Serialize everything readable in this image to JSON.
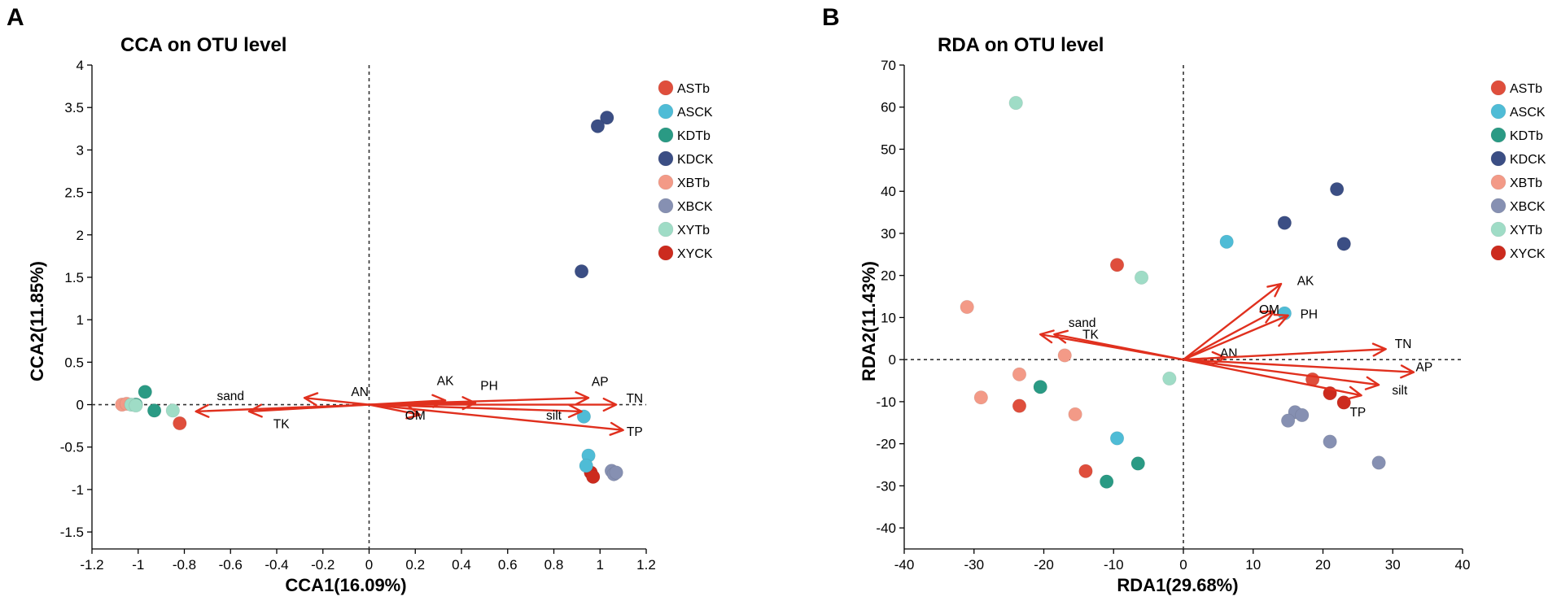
{
  "groups": [
    {
      "name": "ASTb",
      "color": "#df4e3c"
    },
    {
      "name": "ASCK",
      "color": "#4fbcd6"
    },
    {
      "name": "KDTb",
      "color": "#2a9a84"
    },
    {
      "name": "KDCK",
      "color": "#3b4e84"
    },
    {
      "name": "XBTb",
      "color": "#f39a87"
    },
    {
      "name": "XBCK",
      "color": "#8690b2"
    },
    {
      "name": "XYTb",
      "color": "#9fdcc6"
    },
    {
      "name": "XYCK",
      "color": "#cc2b1e"
    }
  ],
  "arrow_color": "#e0301e",
  "chart_data": [
    {
      "type": "scatter",
      "panel_letter": "A",
      "title": "CCA on OTU level",
      "xlabel": "CCA1(16.09%)",
      "ylabel": "CCA2(11.85%)",
      "xlim": [
        -1.2,
        1.2
      ],
      "ylim": [
        -1.7,
        4
      ],
      "xticks": [
        -1.2,
        -1,
        -0.8,
        -0.6,
        -0.4,
        -0.2,
        0,
        0.2,
        0.4,
        0.6,
        0.8,
        1,
        1.2
      ],
      "yticks": [
        -1.5,
        -1,
        -0.5,
        0,
        0.5,
        1,
        1.5,
        2,
        2.5,
        3,
        3.5,
        4
      ],
      "xtick_labels": [
        "-1.2",
        "-1",
        "-0.8",
        "-0.6",
        "-0.4",
        "-0.2",
        "0",
        "0.2",
        "0.4",
        "0.6",
        "0.8",
        "1",
        "1.2"
      ],
      "ytick_labels": [
        "-1.5",
        "-1",
        "-0.5",
        "0",
        "0.5",
        "1",
        "1.5",
        "2",
        "2.5",
        "3",
        "3.5",
        "4"
      ],
      "arrows": [
        {
          "label": "sand",
          "x": -0.75,
          "y": -0.08,
          "lx": -0.6,
          "ly": 0.1
        },
        {
          "label": "TK",
          "x": -0.52,
          "y": -0.08,
          "lx": -0.38,
          "ly": -0.23
        },
        {
          "label": "AN",
          "x": -0.28,
          "y": 0.08,
          "lx": -0.04,
          "ly": 0.15
        },
        {
          "label": "OM",
          "x": 0.22,
          "y": -0.12,
          "lx": 0.2,
          "ly": -0.13
        },
        {
          "label": "AK",
          "x": 0.33,
          "y": 0.05,
          "lx": 0.33,
          "ly": 0.28
        },
        {
          "label": "PH",
          "x": 0.46,
          "y": 0.02,
          "lx": 0.52,
          "ly": 0.22
        },
        {
          "label": "AP",
          "x": 0.95,
          "y": 0.08,
          "lx": 1.0,
          "ly": 0.27
        },
        {
          "label": "TN",
          "x": 1.07,
          "y": 0.0,
          "lx": 1.15,
          "ly": 0.07
        },
        {
          "label": "silt",
          "x": 0.92,
          "y": -0.08,
          "lx": 0.8,
          "ly": -0.13
        },
        {
          "label": "TP",
          "x": 1.1,
          "y": -0.3,
          "lx": 1.15,
          "ly": -0.32
        }
      ],
      "points": [
        {
          "group": "ASTb",
          "x": -0.82,
          "y": -0.22
        },
        {
          "group": "XYCK",
          "x": 0.96,
          "y": -0.8
        },
        {
          "group": "XYCK",
          "x": 0.97,
          "y": -0.85
        },
        {
          "group": "ASCK",
          "x": 0.93,
          "y": -0.14
        },
        {
          "group": "ASCK",
          "x": 0.95,
          "y": -0.6
        },
        {
          "group": "ASCK",
          "x": 0.94,
          "y": -0.72
        },
        {
          "group": "KDTb",
          "x": -0.97,
          "y": 0.15
        },
        {
          "group": "KDTb",
          "x": -0.93,
          "y": -0.07
        },
        {
          "group": "KDTb",
          "x": -1.01,
          "y": 0.0
        },
        {
          "group": "KDCK",
          "x": 1.03,
          "y": 3.38
        },
        {
          "group": "KDCK",
          "x": 0.99,
          "y": 3.28
        },
        {
          "group": "KDCK",
          "x": 0.92,
          "y": 1.57
        },
        {
          "group": "XBTb",
          "x": -1.07,
          "y": 0.0
        },
        {
          "group": "XBTb",
          "x": -1.05,
          "y": 0.01
        },
        {
          "group": "XBCK",
          "x": 1.05,
          "y": -0.78
        },
        {
          "group": "XBCK",
          "x": 1.06,
          "y": -0.82
        },
        {
          "group": "XBCK",
          "x": 1.07,
          "y": -0.8
        },
        {
          "group": "XYTb",
          "x": -0.85,
          "y": -0.07
        },
        {
          "group": "XYTb",
          "x": -1.03,
          "y": 0.0
        },
        {
          "group": "XYTb",
          "x": -1.01,
          "y": -0.01
        }
      ]
    },
    {
      "type": "scatter",
      "panel_letter": "B",
      "title": "RDA on OTU level",
      "xlabel": "RDA1(29.68%)",
      "ylabel": "RDA2(11.43%)",
      "xlim": [
        -40,
        40
      ],
      "ylim": [
        -45,
        70
      ],
      "xticks": [
        -40,
        -30,
        -20,
        -10,
        0,
        10,
        20,
        30,
        40
      ],
      "yticks": [
        -40,
        -30,
        -20,
        -10,
        0,
        10,
        20,
        30,
        40,
        50,
        60,
        70
      ],
      "xtick_labels": [
        "-40",
        "-30",
        "-20",
        "-10",
        "0",
        "10",
        "20",
        "30",
        "40"
      ],
      "ytick_labels": [
        "-40",
        "-30",
        "-20",
        "-10",
        "0",
        "10",
        "20",
        "30",
        "40",
        "50",
        "60",
        "70"
      ],
      "arrows": [
        {
          "label": "sand",
          "x": -20.5,
          "y": 6.0,
          "lx": -14.5,
          "ly": 8.7
        },
        {
          "label": "TK",
          "x": -18.5,
          "y": 6.0,
          "lx": -13.3,
          "ly": 5.9
        },
        {
          "label": "AN",
          "x": 6.0,
          "y": 0.5,
          "lx": 6.5,
          "ly": 1.5
        },
        {
          "label": "OM",
          "x": 13.0,
          "y": 11.5,
          "lx": 12.3,
          "ly": 11.8
        },
        {
          "label": "AK",
          "x": 14.0,
          "y": 18.0,
          "lx": 17.5,
          "ly": 18.7
        },
        {
          "label": "PH",
          "x": 15.0,
          "y": 10.5,
          "lx": 18.0,
          "ly": 10.8
        },
        {
          "label": "TN",
          "x": 29.0,
          "y": 2.5,
          "lx": 31.5,
          "ly": 3.7
        },
        {
          "label": "AP",
          "x": 33.0,
          "y": -3.0,
          "lx": 34.5,
          "ly": -1.8
        },
        {
          "label": "silt",
          "x": 28.0,
          "y": -6.0,
          "lx": 31.0,
          "ly": -7.3
        },
        {
          "label": "TP",
          "x": 25.5,
          "y": -8.5,
          "lx": 25.0,
          "ly": -12.5
        }
      ],
      "points": [
        {
          "group": "ASTb",
          "x": -9.5,
          "y": 22.5
        },
        {
          "group": "ASTb",
          "x": -23.5,
          "y": -11.0
        },
        {
          "group": "ASTb",
          "x": -14.0,
          "y": -26.5
        },
        {
          "group": "ASTb",
          "x": 18.5,
          "y": -4.7
        },
        {
          "group": "ASCK",
          "x": 6.2,
          "y": 28.0
        },
        {
          "group": "ASCK",
          "x": 14.5,
          "y": 11.0
        },
        {
          "group": "ASCK",
          "x": -9.5,
          "y": -18.7
        },
        {
          "group": "KDTb",
          "x": -20.5,
          "y": -6.5
        },
        {
          "group": "KDTb",
          "x": -6.5,
          "y": -24.7
        },
        {
          "group": "KDTb",
          "x": -11.0,
          "y": -29.0
        },
        {
          "group": "KDCK",
          "x": 22.0,
          "y": 40.5
        },
        {
          "group": "KDCK",
          "x": 14.5,
          "y": 32.5
        },
        {
          "group": "KDCK",
          "x": 23.0,
          "y": 27.5
        },
        {
          "group": "XBTb",
          "x": -31.0,
          "y": 12.5
        },
        {
          "group": "XBTb",
          "x": -17.0,
          "y": 1.0
        },
        {
          "group": "XBTb",
          "x": -23.5,
          "y": -3.5
        },
        {
          "group": "XBTb",
          "x": -29.0,
          "y": -9.0
        },
        {
          "group": "XBTb",
          "x": -15.5,
          "y": -13.0
        },
        {
          "group": "XBCK",
          "x": 16.0,
          "y": -12.5
        },
        {
          "group": "XBCK",
          "x": 15.0,
          "y": -14.5
        },
        {
          "group": "XBCK",
          "x": 17.0,
          "y": -13.2
        },
        {
          "group": "XBCK",
          "x": 21.0,
          "y": -19.5
        },
        {
          "group": "XBCK",
          "x": 28.0,
          "y": -24.5
        },
        {
          "group": "XYTb",
          "x": -24.0,
          "y": 61.0
        },
        {
          "group": "XYTb",
          "x": -6.0,
          "y": 19.5
        },
        {
          "group": "XYTb",
          "x": -2.0,
          "y": -4.5
        },
        {
          "group": "XYCK",
          "x": 21.0,
          "y": -8.0
        },
        {
          "group": "XYCK",
          "x": 23.0,
          "y": -10.2
        }
      ]
    }
  ]
}
